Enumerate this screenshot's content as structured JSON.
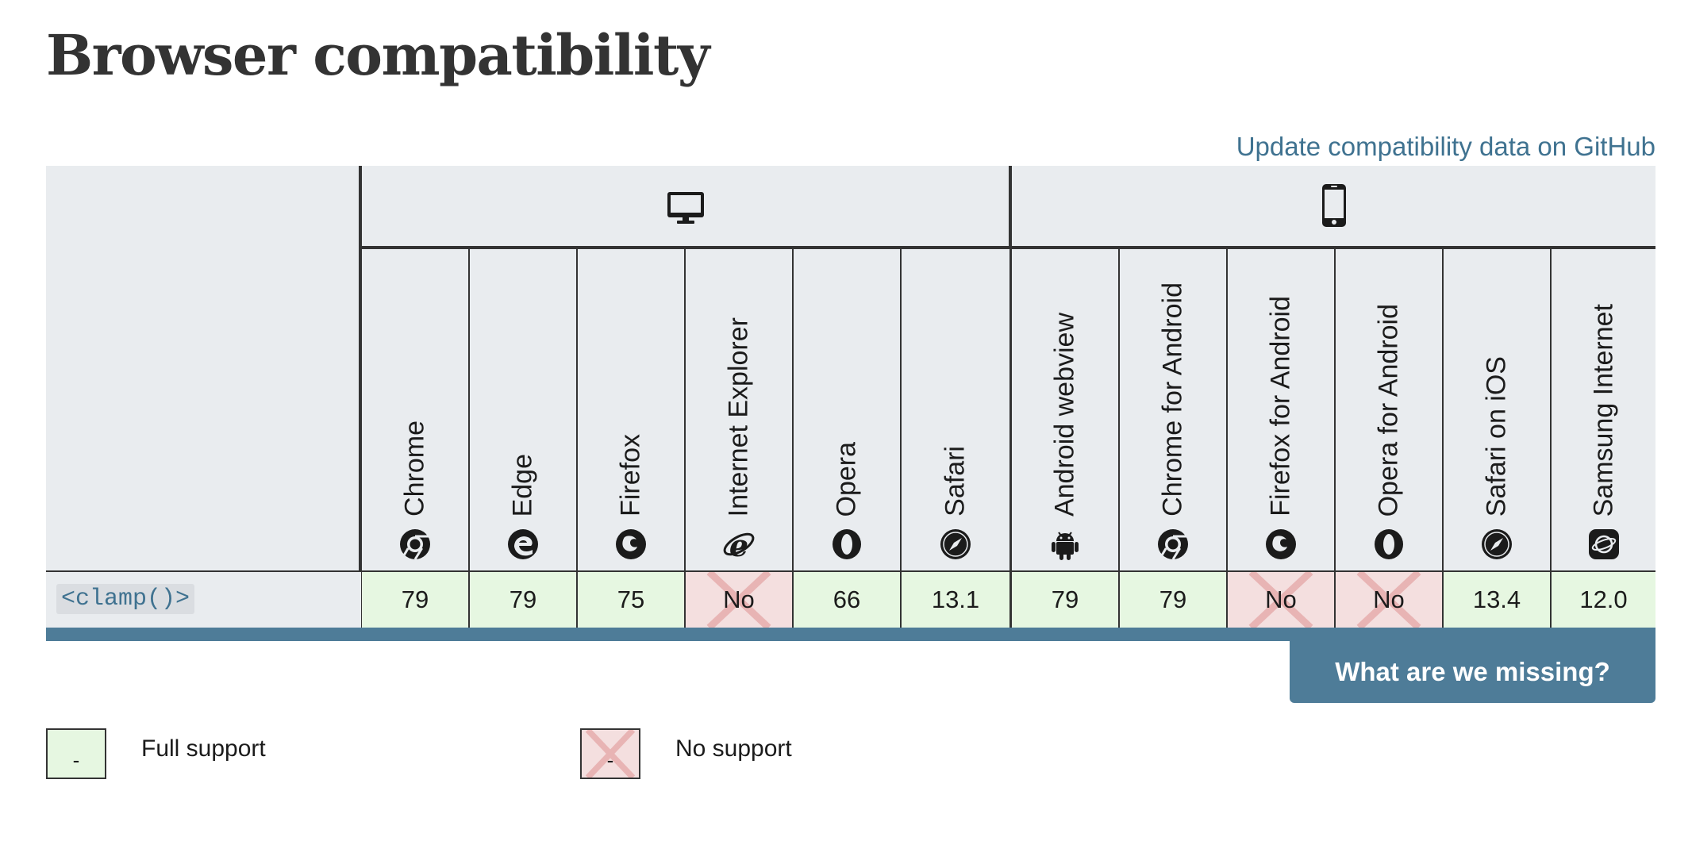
{
  "page": {
    "title": "Browser compatibility",
    "github_link": "Update compatibility data on GitHub"
  },
  "platforms": [
    {
      "name": "desktop",
      "icon": "desktop-icon"
    },
    {
      "name": "mobile",
      "icon": "mobile-icon"
    }
  ],
  "browsers": [
    {
      "name": "Chrome",
      "icon": "chrome-icon",
      "platform": "desktop"
    },
    {
      "name": "Edge",
      "icon": "edge-icon",
      "platform": "desktop"
    },
    {
      "name": "Firefox",
      "icon": "firefox-icon",
      "platform": "desktop"
    },
    {
      "name": "Internet Explorer",
      "icon": "internet-explorer-icon",
      "platform": "desktop"
    },
    {
      "name": "Opera",
      "icon": "opera-icon",
      "platform": "desktop"
    },
    {
      "name": "Safari",
      "icon": "safari-icon",
      "platform": "desktop"
    },
    {
      "name": "Android webview",
      "icon": "android-icon",
      "platform": "mobile"
    },
    {
      "name": "Chrome for Android",
      "icon": "chrome-icon",
      "platform": "mobile"
    },
    {
      "name": "Firefox for Android",
      "icon": "firefox-icon",
      "platform": "mobile"
    },
    {
      "name": "Opera for Android",
      "icon": "opera-icon",
      "platform": "mobile"
    },
    {
      "name": "Safari on iOS",
      "icon": "safari-icon",
      "platform": "mobile"
    },
    {
      "name": "Samsung Internet",
      "icon": "samsung-internet-icon",
      "platform": "mobile"
    }
  ],
  "feature": {
    "name": "<clamp()>",
    "support": [
      {
        "value": "79",
        "status": "yes"
      },
      {
        "value": "79",
        "status": "yes"
      },
      {
        "value": "75",
        "status": "yes"
      },
      {
        "value": "No",
        "status": "no"
      },
      {
        "value": "66",
        "status": "yes"
      },
      {
        "value": "13.1",
        "status": "yes"
      },
      {
        "value": "79",
        "status": "yes"
      },
      {
        "value": "79",
        "status": "yes"
      },
      {
        "value": "No",
        "status": "no"
      },
      {
        "value": "No",
        "status": "no"
      },
      {
        "value": "13.4",
        "status": "yes"
      },
      {
        "value": "12.0",
        "status": "yes"
      }
    ]
  },
  "missing_button": "What are we missing?",
  "legend": [
    {
      "box_text": "-",
      "label": "Full support",
      "status": "yes"
    },
    {
      "box_text": "-",
      "label": "No support",
      "status": "no"
    }
  ],
  "colors": {
    "full_support": "#e6f7e1",
    "no_support": "#f4dfdf",
    "accent": "#4e7c98",
    "link": "#3f7290",
    "header_bg": "#e9ecef"
  }
}
